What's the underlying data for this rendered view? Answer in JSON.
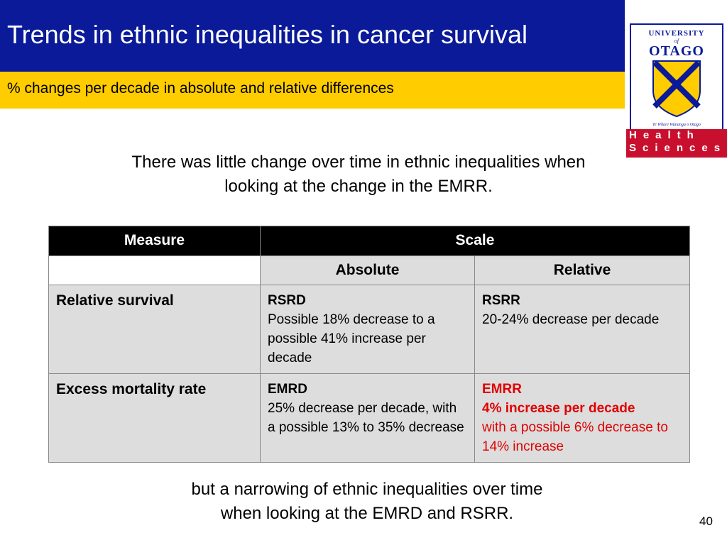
{
  "header": {
    "title": "Trends in ethnic inequalities in cancer survival",
    "subtitle": "% changes per decade in absolute and relative differences"
  },
  "logo": {
    "line1": "UNIVERSITY",
    "line2": "of",
    "line3": "OTAGO",
    "motto": "Te Whare Wananga o Otago",
    "faculty": [
      "Health",
      "Sciences"
    ]
  },
  "intro": [
    "There was little change over time in ethnic inequalities when",
    "looking at the change in the EMRR."
  ],
  "table": {
    "header": [
      "Measure",
      "Scale"
    ],
    "subheader": [
      "Absolute",
      "Relative"
    ],
    "rows": [
      {
        "label": "Relative survival",
        "cells": [
          {
            "heading": "RSRD",
            "text": "Possible 18% decrease to a possible 41% increase per decade"
          },
          {
            "heading": "RSRR",
            "text": "20-24% decrease per decade"
          }
        ]
      },
      {
        "label": "Excess mortality rate",
        "cells": [
          {
            "heading": "EMRD",
            "text": "25% decrease per decade, with a possible 13% to 35% decrease"
          },
          {
            "heading": "EMRR",
            "highlight": "4% increase per decade",
            "text": "with a possible 6% decrease to 14% increase"
          }
        ]
      }
    ]
  },
  "conclusion": [
    "but a narrowing of ethnic inequalities over time",
    "when looking at the EMRD and RSRR."
  ],
  "page_number": 40
}
